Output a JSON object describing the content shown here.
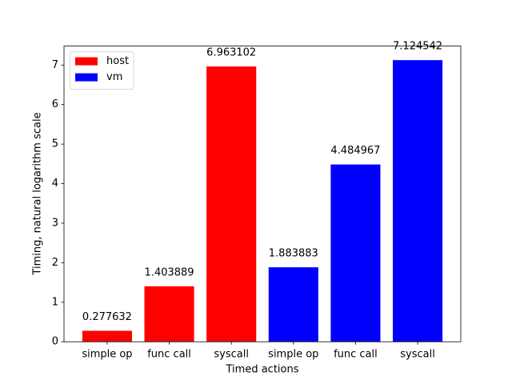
{
  "chart_data": {
    "type": "bar",
    "xlabel": "Timed actions",
    "ylabel": "Timing, natural logarithm scale",
    "categories": [
      "simple op",
      "func call",
      "syscall",
      "simple op",
      "func call",
      "syscall"
    ],
    "series": [
      {
        "name": "host",
        "color": "#ff0000",
        "values": [
          0.277632,
          1.403889,
          6.963102,
          null,
          null,
          null
        ]
      },
      {
        "name": "vm",
        "color": "#0000ff",
        "values": [
          null,
          null,
          null,
          1.883883,
          4.484967,
          7.124542
        ]
      }
    ],
    "ylim": [
      0,
      7.48
    ],
    "yticks": [
      0,
      1,
      2,
      3,
      4,
      5,
      6,
      7
    ],
    "legend": "upper left"
  }
}
